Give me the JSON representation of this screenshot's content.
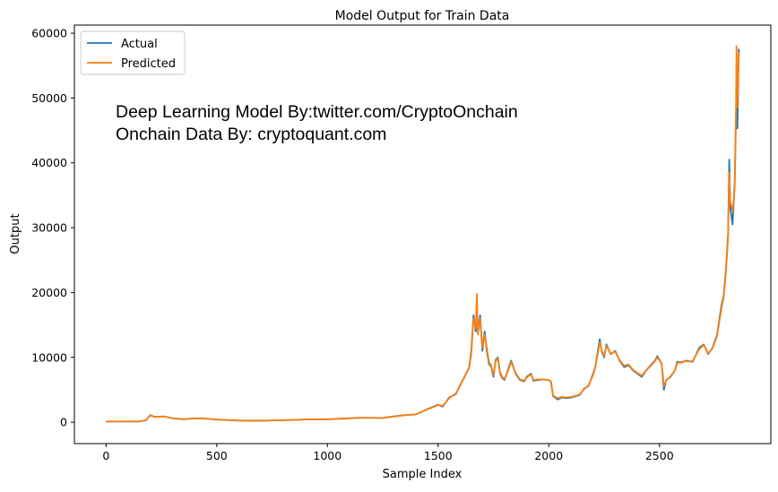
{
  "chart_data": {
    "type": "line",
    "title": "Model Output for Train Data",
    "xlabel": "Sample Index",
    "ylabel": "Output",
    "xlim": [
      -143,
      3003
    ],
    "ylim": [
      -3300,
      61250
    ],
    "xticks": [
      0,
      500,
      1000,
      1500,
      2000,
      2500
    ],
    "yticks": [
      0,
      10000,
      20000,
      30000,
      40000,
      50000,
      60000
    ],
    "grid": false,
    "legend_placement": "top-left",
    "annotations": [
      "Deep Learning  Model By:twitter.com/CryptoOnchain",
      "Onchain Data By: cryptoquant.com"
    ],
    "series": [
      {
        "name": "Actual",
        "color": "#1f77b4",
        "x": [
          0,
          150,
          180,
          200,
          220,
          260,
          300,
          350,
          400,
          450,
          500,
          600,
          700,
          800,
          900,
          1000,
          1100,
          1150,
          1250,
          1300,
          1350,
          1400,
          1450,
          1500,
          1520,
          1550,
          1580,
          1600,
          1620,
          1640,
          1650,
          1660,
          1670,
          1675,
          1680,
          1690,
          1700,
          1710,
          1720,
          1730,
          1740,
          1750,
          1760,
          1770,
          1780,
          1790,
          1800,
          1820,
          1830,
          1850,
          1870,
          1890,
          1900,
          1920,
          1930,
          1950,
          1970,
          2000,
          2010,
          2020,
          2040,
          2060,
          2080,
          2100,
          2120,
          2140,
          2160,
          2180,
          2200,
          2210,
          2230,
          2240,
          2250,
          2260,
          2280,
          2300,
          2320,
          2340,
          2360,
          2380,
          2400,
          2420,
          2440,
          2460,
          2480,
          2490,
          2510,
          2520,
          2530,
          2550,
          2570,
          2580,
          2600,
          2620,
          2650,
          2680,
          2700,
          2720,
          2740,
          2760,
          2780,
          2790,
          2800,
          2810,
          2815,
          2820,
          2830,
          2840,
          2845,
          2848,
          2852,
          2855,
          2858,
          2860
        ],
        "y": [
          100,
          120,
          300,
          1100,
          800,
          900,
          600,
          450,
          600,
          550,
          400,
          250,
          230,
          300,
          420,
          450,
          600,
          700,
          650,
          900,
          1100,
          1200,
          2000,
          2700,
          2400,
          3800,
          4300,
          5800,
          7000,
          8500,
          11000,
          16500,
          14000,
          17000,
          14000,
          16500,
          11000,
          14000,
          11000,
          9000,
          8500,
          7000,
          9600,
          10000,
          7500,
          6800,
          6500,
          8500,
          9500,
          7500,
          6500,
          6300,
          7000,
          7500,
          6400,
          6500,
          6600,
          6500,
          6200,
          4000,
          3500,
          3800,
          3700,
          3800,
          4000,
          4200,
          5200,
          5600,
          7500,
          8500,
          12800,
          10800,
          10000,
          12000,
          10500,
          11000,
          9500,
          8500,
          8800,
          8000,
          7500,
          7000,
          8000,
          8800,
          9500,
          10200,
          9000,
          5000,
          6500,
          7000,
          8000,
          9300,
          9200,
          9500,
          9300,
          11500,
          12000,
          10500,
          11500,
          13500,
          18000,
          19500,
          23500,
          29000,
          40500,
          33000,
          30500,
          37000,
          47000,
          49000,
          45300,
          50000,
          57500,
          57000
        ]
      },
      {
        "name": "Predicted",
        "color": "#ff7f0e",
        "x": [
          0,
          150,
          180,
          200,
          220,
          260,
          300,
          350,
          400,
          450,
          500,
          600,
          700,
          800,
          900,
          1000,
          1100,
          1150,
          1250,
          1300,
          1350,
          1400,
          1450,
          1500,
          1520,
          1550,
          1580,
          1600,
          1620,
          1640,
          1650,
          1660,
          1670,
          1675,
          1680,
          1690,
          1700,
          1710,
          1720,
          1730,
          1740,
          1750,
          1760,
          1770,
          1780,
          1790,
          1800,
          1820,
          1830,
          1850,
          1870,
          1890,
          1900,
          1920,
          1930,
          1950,
          1970,
          2000,
          2010,
          2020,
          2040,
          2060,
          2080,
          2100,
          2120,
          2140,
          2160,
          2180,
          2200,
          2210,
          2230,
          2240,
          2250,
          2260,
          2280,
          2300,
          2320,
          2340,
          2360,
          2380,
          2400,
          2420,
          2440,
          2460,
          2480,
          2490,
          2510,
          2520,
          2530,
          2550,
          2570,
          2580,
          2600,
          2620,
          2650,
          2680,
          2700,
          2720,
          2740,
          2760,
          2780,
          2790,
          2800,
          2810,
          2815,
          2820,
          2830,
          2840,
          2845,
          2848,
          2852,
          2855,
          2858,
          2860
        ],
        "y": [
          110,
          130,
          320,
          1050,
          820,
          880,
          620,
          470,
          590,
          560,
          420,
          270,
          250,
          310,
          430,
          460,
          610,
          690,
          660,
          880,
          1080,
          1220,
          1950,
          2650,
          2500,
          3700,
          4400,
          5700,
          7100,
          8400,
          10500,
          16000,
          14500,
          19800,
          13500,
          16000,
          11500,
          13500,
          11500,
          9300,
          8700,
          7300,
          9400,
          9800,
          7700,
          7000,
          6600,
          8300,
          9300,
          7600,
          6600,
          6400,
          6900,
          7400,
          6500,
          6600,
          6600,
          6500,
          6300,
          4100,
          3700,
          3900,
          3800,
          3900,
          4050,
          4300,
          5100,
          5700,
          7300,
          8400,
          12300,
          11000,
          10200,
          11800,
          10600,
          10900,
          9600,
          8700,
          8900,
          8100,
          7600,
          7200,
          8000,
          8700,
          9400,
          10000,
          9100,
          5600,
          6400,
          7100,
          8000,
          9100,
          9300,
          9400,
          9400,
          11300,
          11900,
          10600,
          11400,
          13300,
          17500,
          19300,
          23000,
          28500,
          38500,
          34000,
          32500,
          36000,
          46000,
          58000,
          48500,
          52000,
          57000,
          56500
        ]
      }
    ]
  }
}
